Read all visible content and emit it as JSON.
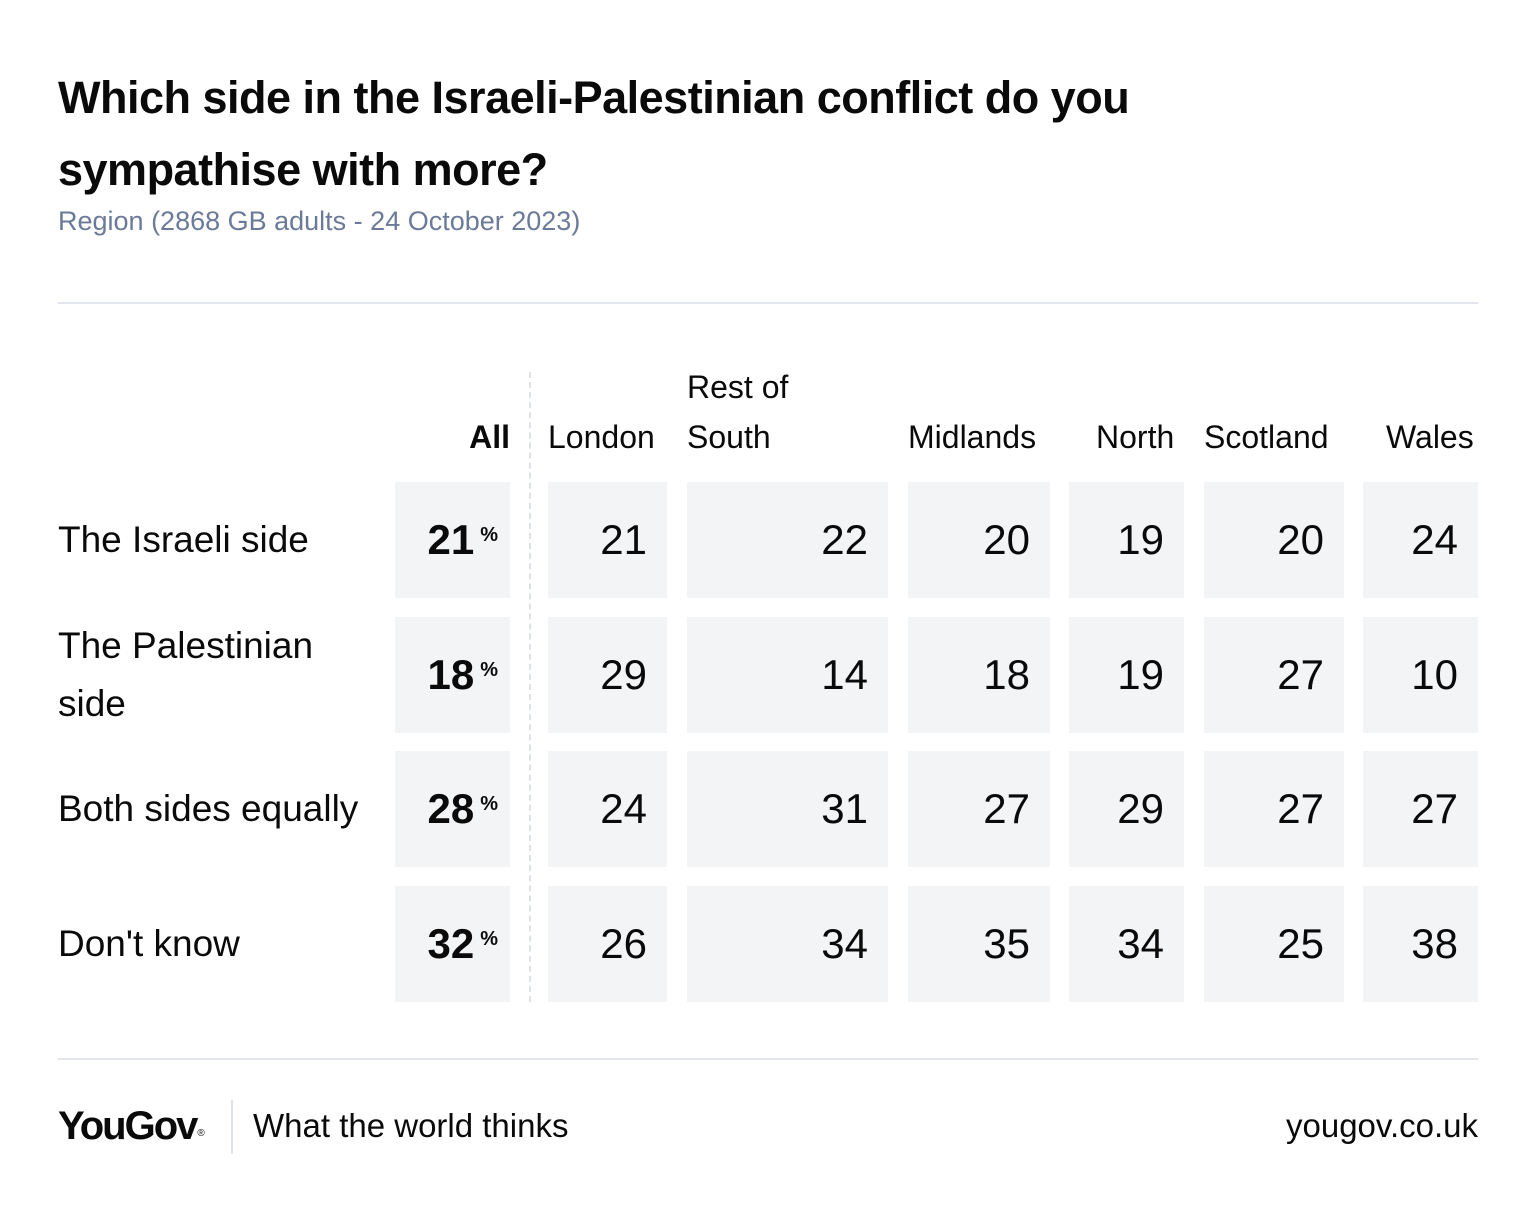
{
  "header": {
    "title": "Which side in the Israeli-Palestinian conflict do you sympathise with more?",
    "subtitle": "Region (2868 GB adults - 24 October 2023)"
  },
  "chart_data": {
    "type": "table",
    "title": "Which side in the Israeli-Palestinian conflict do you sympathise with more?",
    "subtitle": "Region (2868 GB adults - 24 October 2023)",
    "unit_label": "%",
    "columns": [
      {
        "key": "all",
        "label": "All"
      },
      {
        "key": "london",
        "label_lines": [
          "",
          "London"
        ],
        "label": "London"
      },
      {
        "key": "rest_of_south",
        "label_lines": [
          "Rest of",
          "South"
        ],
        "label": "Rest of South"
      },
      {
        "key": "midlands",
        "label_lines": [
          "",
          "Midlands"
        ],
        "label": "Midlands"
      },
      {
        "key": "north",
        "label_lines": [
          "",
          "North"
        ],
        "label": "North"
      },
      {
        "key": "scotland",
        "label_lines": [
          "",
          "Scotland"
        ],
        "label": "Scotland"
      },
      {
        "key": "wales",
        "label_lines": [
          "",
          "Wales"
        ],
        "label": "Wales"
      }
    ],
    "rows": [
      {
        "label": "The Israeli side",
        "values": [
          21,
          21,
          22,
          20,
          19,
          20,
          24
        ]
      },
      {
        "label": "The Palestinian side",
        "values": [
          18,
          29,
          14,
          18,
          19,
          27,
          10
        ]
      },
      {
        "label": "Both sides equally",
        "values": [
          28,
          24,
          31,
          27,
          29,
          27,
          27
        ]
      },
      {
        "label": "Don't know",
        "values": [
          32,
          26,
          34,
          35,
          34,
          25,
          38
        ]
      }
    ],
    "colors": {
      "cell_bg": "#f3f4f6",
      "subtitle": "#6b7a99",
      "rule": "#e3e6ec"
    }
  },
  "footer": {
    "logo": "YouGov",
    "logo_mark": "®",
    "tagline": "What the world thinks",
    "url": "yougov.co.uk"
  }
}
